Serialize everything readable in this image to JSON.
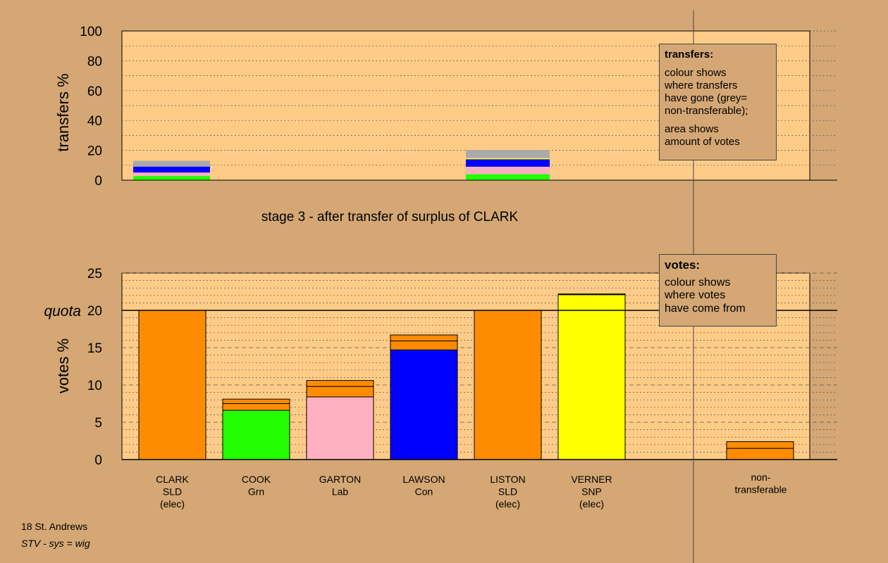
{
  "stage_title": "stage 3 - after transfer of surplus of CLARK",
  "footer": {
    "line1": "18 St. Andrews",
    "line2": "STV - sys = wig"
  },
  "transfers_legend": {
    "title": "transfers:",
    "lines1": [
      "colour shows",
      "where transfers",
      "have gone (grey=",
      "non-transferable);"
    ],
    "lines2": [
      "area shows",
      "amount of votes"
    ]
  },
  "votes_legend": {
    "title": "votes:",
    "lines": [
      "colour shows",
      "where votes",
      "have come from"
    ]
  },
  "colors": {
    "background": "#d4a774",
    "plot_bg": "#ffcc88",
    "SLD": "#ff8c00",
    "Grn": "#22ff00",
    "Lab": "#ffb0c0",
    "Con": "#0000ff",
    "SNP": "#ffff00",
    "non_transferable": "#aaaaaa"
  },
  "chart_data": [
    {
      "type": "bar",
      "name": "transfers",
      "ylabel": "transfers %",
      "ylim": [
        0,
        100
      ],
      "yticks": [
        0,
        20,
        40,
        60,
        80,
        100
      ],
      "grid": true,
      "bars": [
        {
          "category": "CLARK",
          "segments": [
            {
              "to": "Grn",
              "value": 2.8
            },
            {
              "to": "Lab",
              "value": 2.3
            },
            {
              "to": "Con",
              "value": 4.0
            },
            {
              "to": "SNP",
              "value": 0
            },
            {
              "to": "non-transferable",
              "value": 3.9
            }
          ]
        },
        {
          "category": "LISTON",
          "segments": [
            {
              "to": "Grn",
              "value": 4.0
            },
            {
              "to": "Lab",
              "value": 5.0
            },
            {
              "to": "Con",
              "value": 5.0
            },
            {
              "to": "SNP",
              "value": 0.8
            },
            {
              "to": "non-transferable",
              "value": 5.4
            }
          ]
        }
      ]
    },
    {
      "type": "bar",
      "name": "votes",
      "ylabel": "votes %",
      "ylim": [
        0,
        25
      ],
      "yticks": [
        0,
        5,
        10,
        15,
        20,
        25
      ],
      "quota": 20,
      "quota_label": "quota",
      "grid": true,
      "categories": [
        {
          "name": "CLARK",
          "party": "SLD",
          "status": "(elec)",
          "party_color": "SLD",
          "segments": [
            {
              "from": "SLD",
              "value": 20.0
            }
          ]
        },
        {
          "name": "COOK",
          "party": "Grn",
          "status": "",
          "party_color": "Grn",
          "segments": [
            {
              "from": "Grn",
              "value": 6.6
            },
            {
              "from": "SLD",
              "value": 0.9
            },
            {
              "from": "SLD",
              "value": 0.6
            }
          ]
        },
        {
          "name": "GARTON",
          "party": "Lab",
          "status": "",
          "party_color": "Lab",
          "segments": [
            {
              "from": "Lab",
              "value": 8.4
            },
            {
              "from": "SLD",
              "value": 1.4
            },
            {
              "from": "SLD",
              "value": 0.8
            }
          ]
        },
        {
          "name": "LAWSON",
          "party": "Con",
          "status": "",
          "party_color": "Con",
          "segments": [
            {
              "from": "Con",
              "value": 14.7
            },
            {
              "from": "SLD",
              "value": 1.2
            },
            {
              "from": "SLD",
              "value": 0.8
            }
          ]
        },
        {
          "name": "LISTON",
          "party": "SLD",
          "status": "(elec)",
          "party_color": "SLD",
          "segments": [
            {
              "from": "SLD",
              "value": 20.0
            }
          ]
        },
        {
          "name": "VERNER",
          "party": "SNP",
          "status": "(elec)",
          "party_color": "SNP",
          "segments": [
            {
              "from": "SNP",
              "value": 22.1
            },
            {
              "from": "SLD",
              "value": 0.1
            }
          ]
        }
      ],
      "non_transferable": {
        "label_line1": "non-",
        "label_line2": "transferable",
        "segments": [
          {
            "from": "SLD",
            "value": 1.5
          },
          {
            "from": "SLD",
            "value": 0.9
          }
        ]
      }
    }
  ]
}
